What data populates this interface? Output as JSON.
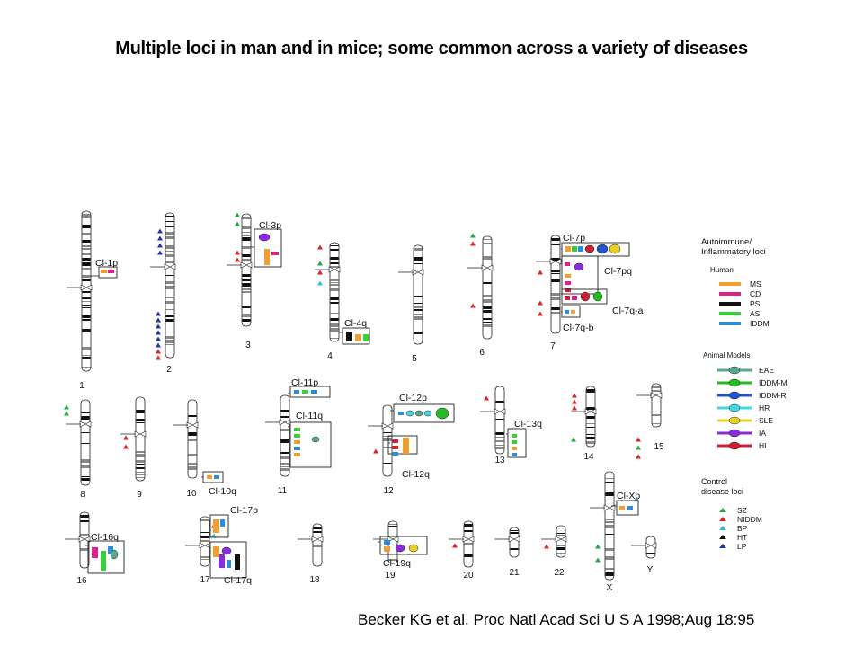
{
  "title": "Multiple loci in man and in mice; some common across a variety of diseases",
  "citation": "Becker KG et al. Proc Natl Acad Sci U S A 1998;Aug 18:95",
  "chromosome_labels": [
    "1",
    "2",
    "3",
    "4",
    "5",
    "6",
    "7",
    "8",
    "9",
    "10",
    "11",
    "12",
    "13",
    "14",
    "15",
    "16",
    "17",
    "18",
    "19",
    "20",
    "21",
    "22",
    "X",
    "Y"
  ],
  "cluster_labels": [
    "Cl-1p",
    "Cl-3p",
    "Cl-4q",
    "Cl-7p",
    "Cl-7pq",
    "Cl-7q-a",
    "Cl-7q-b",
    "Cl-11p",
    "Cl-11q",
    "Cl-12p",
    "Cl-12q",
    "Cl-13q",
    "Cl-10q",
    "Cl-16q",
    "Cl-17p",
    "Cl-17q",
    "Cl-19q",
    "Cl-Xp"
  ],
  "legend": {
    "heading_1": "Autoimmune/",
    "heading_2": "Inflammatory  loci",
    "human_heading": "Human",
    "human": [
      {
        "label": "MS",
        "color": "#f0a030"
      },
      {
        "label": "CD",
        "color": "#e0208a"
      },
      {
        "label": "PS",
        "color": "#111111"
      },
      {
        "label": "AS",
        "color": "#3ccc3c"
      },
      {
        "label": "IDDM",
        "color": "#2a8fd8"
      }
    ],
    "animal_heading": "Animal Models",
    "animal": [
      {
        "label": "EAE",
        "color": "#5aa88a"
      },
      {
        "label": "IDDM-M",
        "color": "#22bb22"
      },
      {
        "label": "IDDM-R",
        "color": "#2255cc"
      },
      {
        "label": "HR",
        "color": "#40d8e8"
      },
      {
        "label": "SLE",
        "color": "#e8d020"
      },
      {
        "label": "IA",
        "color": "#8a2be2"
      },
      {
        "label": "HI",
        "color": "#cc2233"
      }
    ],
    "control_heading_1": "Control",
    "control_heading_2": "disease loci",
    "control": [
      {
        "label": "SZ",
        "color": "#22aa44"
      },
      {
        "label": "NIDDM",
        "color": "#dd2222"
      },
      {
        "label": "BP",
        "color": "#33bbdd"
      },
      {
        "label": "HT",
        "color": "#111111"
      },
      {
        "label": "LP",
        "color": "#2233aa"
      }
    ]
  }
}
